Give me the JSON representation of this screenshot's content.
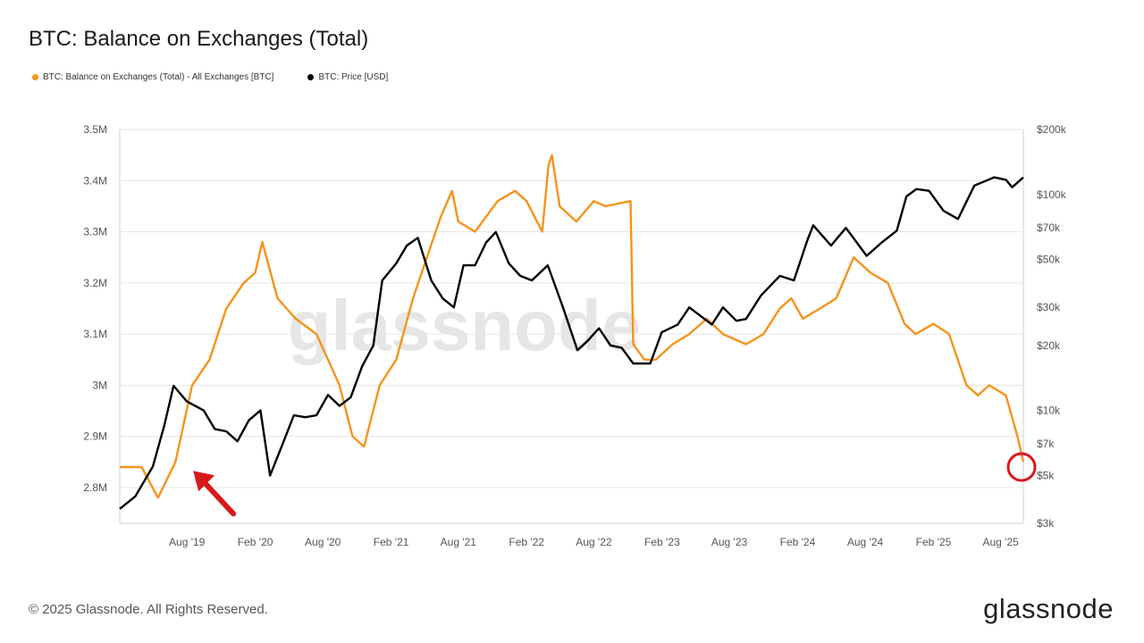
{
  "title": "BTC: Balance on Exchanges (Total)",
  "legend": {
    "balance": "BTC: Balance on Exchanges (Total) - All Exchanges [BTC]",
    "price": "BTC: Price [USD]"
  },
  "footer": "© 2025 Glassnode. All Rights Reserved.",
  "logo": "glassnode",
  "watermark": "glassnode",
  "colors": {
    "balance": "#f7931a",
    "price": "#000000",
    "annotation": "#d7191c",
    "grid": "#e6e6e6"
  },
  "chart_data": {
    "type": "line",
    "title": "BTC: Balance on Exchanges (Total)",
    "x_ticks": [
      "Aug '19",
      "Feb '20",
      "Aug '20",
      "Feb '21",
      "Aug '21",
      "Feb '22",
      "Aug '22",
      "Feb '23",
      "Aug '23",
      "Feb '24",
      "Aug '24",
      "Feb '25",
      "Aug '25"
    ],
    "x_range": [
      "2019-02-01",
      "2025-10-01"
    ],
    "left_axis": {
      "ticks": [
        "2.8M",
        "2.9M",
        "3M",
        "3.1M",
        "3.2M",
        "3.3M",
        "3.4M",
        "3.5M"
      ],
      "ylim": [
        2.73,
        3.5
      ],
      "unit": "BTC (M)"
    },
    "right_axis": {
      "ticks": [
        "$3k",
        "$5k",
        "$7k",
        "$10k",
        "$20k",
        "$30k",
        "$50k",
        "$70k",
        "$100k",
        "$200k"
      ],
      "values": [
        3000,
        5000,
        7000,
        10000,
        20000,
        30000,
        50000,
        70000,
        100000,
        200000
      ],
      "scale": "log",
      "ylim": [
        3000,
        200000
      ]
    },
    "series": [
      {
        "name": "BTC: Balance on Exchanges (Total) - All Exchanges [BTC]",
        "axis": "left",
        "color": "#f7931a",
        "points": [
          [
            "2019-02-01",
            2.84
          ],
          [
            "2019-04-01",
            2.84
          ],
          [
            "2019-05-15",
            2.78
          ],
          [
            "2019-07-01",
            2.85
          ],
          [
            "2019-08-15",
            3.0
          ],
          [
            "2019-10-01",
            3.05
          ],
          [
            "2019-11-15",
            3.15
          ],
          [
            "2020-01-01",
            3.2
          ],
          [
            "2020-02-01",
            3.22
          ],
          [
            "2020-02-20",
            3.28
          ],
          [
            "2020-04-01",
            3.17
          ],
          [
            "2020-05-20",
            3.13
          ],
          [
            "2020-07-15",
            3.1
          ],
          [
            "2020-09-15",
            3.0
          ],
          [
            "2020-10-20",
            2.9
          ],
          [
            "2020-11-20",
            2.88
          ],
          [
            "2021-01-01",
            3.0
          ],
          [
            "2021-02-15",
            3.05
          ],
          [
            "2021-04-01",
            3.17
          ],
          [
            "2021-06-15",
            3.33
          ],
          [
            "2021-07-15",
            3.38
          ],
          [
            "2021-08-01",
            3.32
          ],
          [
            "2021-09-15",
            3.3
          ],
          [
            "2021-11-15",
            3.36
          ],
          [
            "2022-01-01",
            3.38
          ],
          [
            "2022-02-01",
            3.36
          ],
          [
            "2022-03-15",
            3.3
          ],
          [
            "2022-04-01",
            3.43
          ],
          [
            "2022-04-10",
            3.45
          ],
          [
            "2022-05-01",
            3.35
          ],
          [
            "2022-06-15",
            3.32
          ],
          [
            "2022-08-01",
            3.36
          ],
          [
            "2022-09-01",
            3.35
          ],
          [
            "2022-11-08",
            3.36
          ],
          [
            "2022-11-15",
            3.08
          ],
          [
            "2022-12-15",
            3.05
          ],
          [
            "2023-01-15",
            3.05
          ],
          [
            "2023-03-01",
            3.08
          ],
          [
            "2023-04-15",
            3.1
          ],
          [
            "2023-06-01",
            3.13
          ],
          [
            "2023-07-15",
            3.1
          ],
          [
            "2023-09-15",
            3.08
          ],
          [
            "2023-11-01",
            3.1
          ],
          [
            "2023-12-15",
            3.15
          ],
          [
            "2024-01-15",
            3.17
          ],
          [
            "2024-02-15",
            3.13
          ],
          [
            "2024-04-01",
            3.15
          ],
          [
            "2024-05-15",
            3.17
          ],
          [
            "2024-07-01",
            3.25
          ],
          [
            "2024-08-15",
            3.22
          ],
          [
            "2024-10-01",
            3.2
          ],
          [
            "2024-11-15",
            3.12
          ],
          [
            "2024-12-15",
            3.1
          ],
          [
            "2025-02-01",
            3.12
          ],
          [
            "2025-03-15",
            3.1
          ],
          [
            "2025-05-01",
            3.0
          ],
          [
            "2025-06-01",
            2.98
          ],
          [
            "2025-07-01",
            3.0
          ],
          [
            "2025-08-15",
            2.98
          ],
          [
            "2025-09-15",
            2.9
          ],
          [
            "2025-10-01",
            2.85
          ]
        ]
      },
      {
        "name": "BTC: Price [USD]",
        "axis": "right",
        "color": "#000000",
        "points": [
          [
            "2019-02-01",
            3500
          ],
          [
            "2019-03-15",
            4000
          ],
          [
            "2019-05-01",
            5500
          ],
          [
            "2019-06-01",
            8500
          ],
          [
            "2019-06-26",
            13000
          ],
          [
            "2019-08-01",
            11000
          ],
          [
            "2019-09-15",
            10000
          ],
          [
            "2019-10-15",
            8200
          ],
          [
            "2019-11-15",
            8000
          ],
          [
            "2019-12-15",
            7200
          ],
          [
            "2020-01-15",
            9000
          ],
          [
            "2020-02-15",
            10000
          ],
          [
            "2020-03-12",
            5000
          ],
          [
            "2020-04-15",
            7000
          ],
          [
            "2020-05-15",
            9500
          ],
          [
            "2020-06-15",
            9300
          ],
          [
            "2020-07-15",
            9500
          ],
          [
            "2020-08-15",
            11800
          ],
          [
            "2020-09-15",
            10500
          ],
          [
            "2020-10-15",
            11500
          ],
          [
            "2020-11-15",
            16000
          ],
          [
            "2020-12-15",
            20000
          ],
          [
            "2021-01-08",
            40000
          ],
          [
            "2021-02-15",
            48000
          ],
          [
            "2021-03-15",
            58000
          ],
          [
            "2021-04-14",
            63000
          ],
          [
            "2021-05-20",
            40000
          ],
          [
            "2021-06-20",
            33000
          ],
          [
            "2021-07-20",
            30000
          ],
          [
            "2021-08-15",
            47000
          ],
          [
            "2021-09-15",
            47000
          ],
          [
            "2021-10-15",
            60000
          ],
          [
            "2021-11-10",
            67000
          ],
          [
            "2021-12-15",
            48000
          ],
          [
            "2022-01-15",
            42000
          ],
          [
            "2022-02-15",
            40000
          ],
          [
            "2022-03-30",
            47000
          ],
          [
            "2022-05-10",
            30000
          ],
          [
            "2022-06-18",
            19000
          ],
          [
            "2022-07-15",
            21000
          ],
          [
            "2022-08-15",
            24000
          ],
          [
            "2022-09-15",
            20000
          ],
          [
            "2022-10-15",
            19500
          ],
          [
            "2022-11-15",
            16500
          ],
          [
            "2022-12-31",
            16500
          ],
          [
            "2023-01-31",
            23000
          ],
          [
            "2023-03-15",
            25000
          ],
          [
            "2023-04-15",
            30000
          ],
          [
            "2023-06-15",
            25000
          ],
          [
            "2023-07-15",
            30000
          ],
          [
            "2023-08-20",
            26000
          ],
          [
            "2023-09-15",
            26500
          ],
          [
            "2023-10-25",
            34000
          ],
          [
            "2023-12-15",
            42000
          ],
          [
            "2024-01-22",
            40000
          ],
          [
            "2024-02-28",
            62000
          ],
          [
            "2024-03-14",
            72000
          ],
          [
            "2024-05-01",
            58000
          ],
          [
            "2024-06-10",
            70000
          ],
          [
            "2024-08-05",
            52000
          ],
          [
            "2024-09-15",
            60000
          ],
          [
            "2024-10-25",
            68000
          ],
          [
            "2024-11-20",
            98000
          ],
          [
            "2024-12-17",
            106000
          ],
          [
            "2025-01-20",
            104000
          ],
          [
            "2025-02-28",
            84000
          ],
          [
            "2025-04-08",
            77000
          ],
          [
            "2025-05-22",
            110000
          ],
          [
            "2025-07-14",
            120000
          ],
          [
            "2025-08-15",
            117000
          ],
          [
            "2025-09-01",
            108000
          ],
          [
            "2025-10-01",
            120000
          ]
        ]
      }
    ],
    "annotations": [
      {
        "type": "arrow",
        "target_date": "2019-07-15",
        "target_value_m": 2.85
      },
      {
        "type": "circle",
        "target_date": "2025-10-01",
        "target_value_m": 2.84
      }
    ],
    "grid": true,
    "legend_position": "top-left"
  }
}
